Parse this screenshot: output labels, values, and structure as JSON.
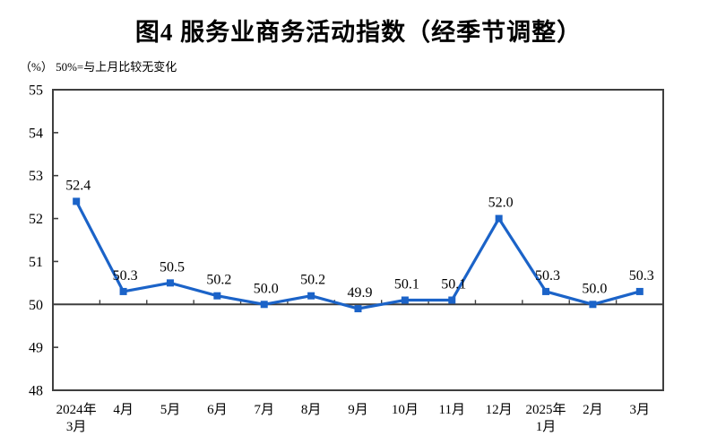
{
  "title": "图4  服务业商务活动指数（经季节调整）",
  "subtitle": "（%） 50%=与上月比较无变化",
  "chart_data": {
    "type": "line",
    "title": "图4  服务业商务活动指数（经季节调整）",
    "unit_note": "（%） 50%=与上月比较无变化",
    "categories": [
      "2024年\n3月",
      "4月",
      "5月",
      "6月",
      "7月",
      "8月",
      "9月",
      "10月",
      "11月",
      "12月",
      "2025年\n1月",
      "2月",
      "3月"
    ],
    "values": [
      52.4,
      50.3,
      50.5,
      50.2,
      50.0,
      50.2,
      49.9,
      50.1,
      50.1,
      52.0,
      50.3,
      50.0,
      50.3
    ],
    "data_labels": [
      "52.4",
      "50.3",
      "50.5",
      "50.2",
      "50.0",
      "50.2",
      "49.9",
      "50.1",
      "50.1",
      "52.0",
      "50.3",
      "50.0",
      "50.3"
    ],
    "ylim": [
      48,
      55
    ],
    "yticks": [
      48,
      49,
      50,
      51,
      52,
      53,
      54,
      55
    ],
    "reference_line": 50,
    "grid": false,
    "legend": "none",
    "marker": "square",
    "line_color": "#1b63c8",
    "axis_color": "#3f3f3f",
    "text_color": "#000000"
  }
}
